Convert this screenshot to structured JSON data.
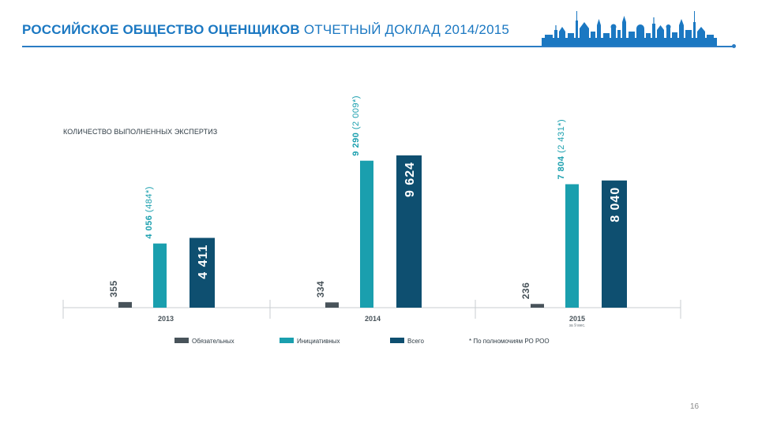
{
  "header": {
    "organization": "РОССИЙСКОЕ ОБЩЕСТВО ОЦЕНЩИКОВ",
    "report": "ОТЧЕТНЫЙ ДОКЛАД 2014/2015"
  },
  "page_number": "16",
  "colors": {
    "header_blue": "#1b78c2",
    "mandatory": "#48535a",
    "initiative": "#1a9fae",
    "total": "#0e4f70"
  },
  "chart_data": {
    "type": "bar",
    "title": "КОЛИЧЕСТВО ВЫПОЛНЕННЫХ ЭКСПЕРТИЗ",
    "categories": [
      "2013",
      "2014",
      "2015"
    ],
    "category_notes": [
      "",
      "",
      "за 9 мес."
    ],
    "series": [
      {
        "name": "Обязательных",
        "values": [
          355,
          334,
          236
        ],
        "labels": [
          "355",
          "334",
          "236"
        ],
        "sublabels": [
          "",
          "",
          ""
        ]
      },
      {
        "name": "Инициативных",
        "values": [
          4056,
          9290,
          7804
        ],
        "labels": [
          "4 056",
          "9 290",
          "7 804"
        ],
        "sublabels": [
          " (484*)",
          " (2 009*)",
          " (2 431*)"
        ]
      },
      {
        "name": "Всего",
        "values": [
          4411,
          9624,
          8040
        ],
        "labels": [
          "4 411",
          "9 624",
          "8 040"
        ],
        "sublabels": [
          "",
          "",
          ""
        ]
      }
    ],
    "footnote": "* По полномочиям РО РОО",
    "xlabel": "",
    "ylabel": "",
    "ylim": [
      0,
      10000
    ]
  }
}
